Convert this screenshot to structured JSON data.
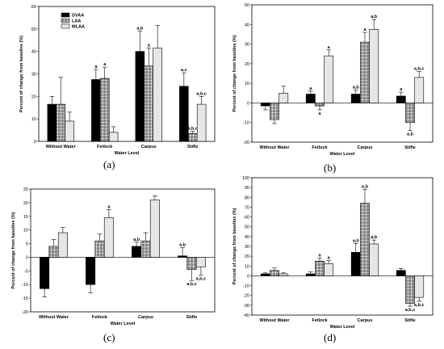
{
  "colors": {
    "DVAA": "#000000",
    "LAA": "checkered",
    "MLAA": "#e6e6e6"
  },
  "chart_data": [
    {
      "type": "bar",
      "panel_label": "(a)",
      "ylabel": "Percent of change from baseline (%)",
      "xlabel": "Water Level",
      "categories": [
        "Without Water",
        "Fetlock",
        "Carpus",
        "Stifle"
      ],
      "ylim": [
        0,
        60
      ],
      "yticks": [
        0,
        10,
        20,
        30,
        40,
        50,
        60
      ],
      "legend": {
        "placement": "top-left",
        "entries": [
          "DVAA",
          "LAA",
          "MLAA"
        ]
      },
      "series": [
        {
          "name": "DVAA",
          "values": [
            16.5,
            27.5,
            40,
            24.5
          ],
          "errors": [
            3.5,
            4.5,
            9,
            6
          ],
          "labels": [
            "",
            "a",
            "a,b",
            "a,c"
          ]
        },
        {
          "name": "LAA",
          "values": [
            16.5,
            28,
            33.5,
            3.5
          ],
          "errors": [
            12,
            5,
            8,
            1
          ],
          "labels": [
            "",
            "a",
            "a",
            "a,b,c"
          ]
        },
        {
          "name": "MLAA",
          "values": [
            9,
            4,
            41.5,
            16.5
          ],
          "errors": [
            4,
            2.5,
            10,
            3.5
          ],
          "labels": [
            "",
            "",
            "",
            "a,b,c"
          ]
        }
      ]
    },
    {
      "type": "bar",
      "panel_label": "(b)",
      "ylabel": "Percent of change from baseline (%)",
      "xlabel": "Water Level",
      "categories": [
        "Without Water",
        "Fetlock",
        "Carpus",
        "Stifle"
      ],
      "ylim": [
        -20,
        50
      ],
      "yticks": [
        -20,
        -10,
        0,
        10,
        20,
        30,
        40,
        50
      ],
      "series": [
        {
          "name": "DVAA",
          "values": [
            -1.5,
            4.5,
            4.5,
            3.5
          ],
          "errors": [
            2,
            1.5,
            2,
            2
          ],
          "labels": [
            "",
            "a",
            "a,b",
            "a"
          ]
        },
        {
          "name": "LAA",
          "values": [
            -8.5,
            -1.5,
            31,
            -10
          ],
          "errors": [
            2,
            2,
            5,
            4
          ],
          "labels": [
            "",
            "a",
            "a",
            "a,b"
          ]
        },
        {
          "name": "MLAA",
          "values": [
            5,
            24,
            37.5,
            13
          ],
          "errors": [
            3.5,
            3,
            5,
            3
          ],
          "labels": [
            "",
            "a",
            "a,b",
            "a,b,c"
          ]
        }
      ]
    },
    {
      "type": "bar",
      "panel_label": "(c)",
      "ylabel": "Percent of change from baseline (%)",
      "xlabel": "Water Level",
      "categories": [
        "Without Water",
        "Fetlock",
        "Carpus",
        "Stifle"
      ],
      "ylim": [
        -20,
        25
      ],
      "yticks": [
        -20,
        -15,
        -10,
        -5,
        0,
        5,
        10,
        15,
        20,
        25
      ],
      "series": [
        {
          "name": "DVAA",
          "values": [
            -11.5,
            -10,
            4,
            0.5
          ],
          "errors": [
            3,
            3,
            1.5,
            3
          ],
          "labels": [
            "",
            "",
            "a,b",
            "a,b"
          ]
        },
        {
          "name": "LAA",
          "values": [
            4,
            6,
            6,
            -4.5
          ],
          "errors": [
            2.5,
            2.5,
            3,
            4
          ],
          "labels": [
            "",
            "",
            "",
            "a,b,c"
          ]
        },
        {
          "name": "MLAA",
          "values": [
            9,
            14.5,
            21,
            -3.5
          ],
          "errors": [
            2,
            3,
            1.5,
            3
          ],
          "labels": [
            "",
            "a",
            "",
            "a,b,c"
          ]
        }
      ]
    },
    {
      "type": "bar",
      "panel_label": "(d)",
      "ylabel": "Percent of change from baseline (%)",
      "xlabel": "Water Level",
      "categories": [
        "Without Water",
        "Fetlock",
        "Carpus",
        "Stifle"
      ],
      "ylim": [
        -40,
        100
      ],
      "yticks": [
        -40,
        -30,
        -20,
        -10,
        0,
        10,
        20,
        30,
        40,
        50,
        60,
        70,
        80,
        90,
        100
      ],
      "series": [
        {
          "name": "DVAA",
          "values": [
            2,
            2,
            24,
            5.5
          ],
          "errors": [
            1,
            2,
            9,
            2
          ],
          "labels": [
            "",
            "",
            "a,b",
            ""
          ]
        },
        {
          "name": "LAA",
          "values": [
            5.5,
            15,
            74,
            -28
          ],
          "errors": [
            2.5,
            3,
            14,
            3
          ],
          "labels": [
            "",
            "a",
            "a,b",
            "a,b,c"
          ]
        },
        {
          "name": "MLAA",
          "values": [
            2,
            12.5,
            32.5,
            -22
          ],
          "errors": [
            1,
            3,
            4,
            4
          ],
          "labels": [
            "",
            "a",
            "a,b",
            "a,b,c"
          ]
        }
      ]
    }
  ]
}
